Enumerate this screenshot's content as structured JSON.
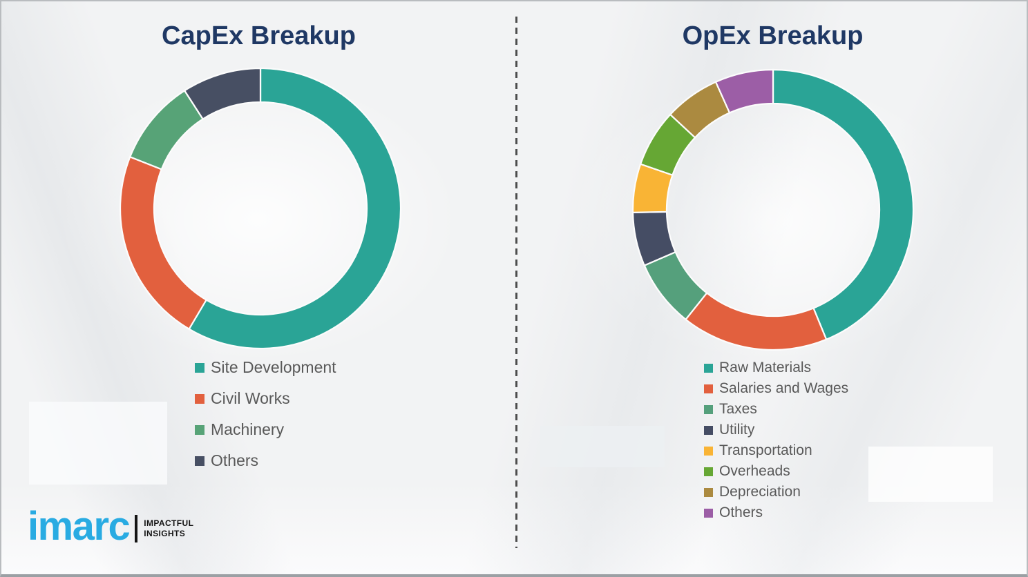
{
  "chart_data": [
    {
      "type": "pie",
      "variant": "donut",
      "title": "CapEx Breakup",
      "legend_position": "bottom-left",
      "start_angle_deg": 0,
      "segments": [
        {
          "label": "Site Development",
          "value": 58.5,
          "color": "#2aa496"
        },
        {
          "label": "Civil Works",
          "value": 22.5,
          "color": "#e2603e"
        },
        {
          "label": "Machinery",
          "value": 9.9,
          "color": "#57a377"
        },
        {
          "label": "Others",
          "value": 9.1,
          "color": "#474f63"
        }
      ]
    },
    {
      "type": "pie",
      "variant": "donut",
      "title": "OpEx Breakup",
      "legend_position": "bottom-left",
      "start_angle_deg": 0,
      "segments": [
        {
          "label": "Raw Materials",
          "value": 43.8,
          "color": "#2aa496"
        },
        {
          "label": "Salaries and Wages",
          "value": 16.9,
          "color": "#e2603e"
        },
        {
          "label": "Taxes",
          "value": 7.8,
          "color": "#55a07c"
        },
        {
          "label": "Utility",
          "value": 6.2,
          "color": "#454d64"
        },
        {
          "label": "Transportation",
          "value": 5.6,
          "color": "#f9b435"
        },
        {
          "label": "Overheads",
          "value": 6.6,
          "color": "#66a734"
        },
        {
          "label": "Depreciation",
          "value": 6.4,
          "color": "#ab8a40"
        },
        {
          "label": "Others",
          "value": 6.7,
          "color": "#9c5ea6"
        }
      ]
    }
  ],
  "branding": {
    "wordmark": "imarc",
    "tagline_line1": "IMPACTFUL",
    "tagline_line2": "INSIGHTS",
    "wordmark_color": "#29abe2"
  },
  "styles": {
    "title_color": "#1f3864",
    "legend_text_color": "#595959",
    "divider_color": "#4d4d4d",
    "background_color": "#f2f3f4"
  }
}
